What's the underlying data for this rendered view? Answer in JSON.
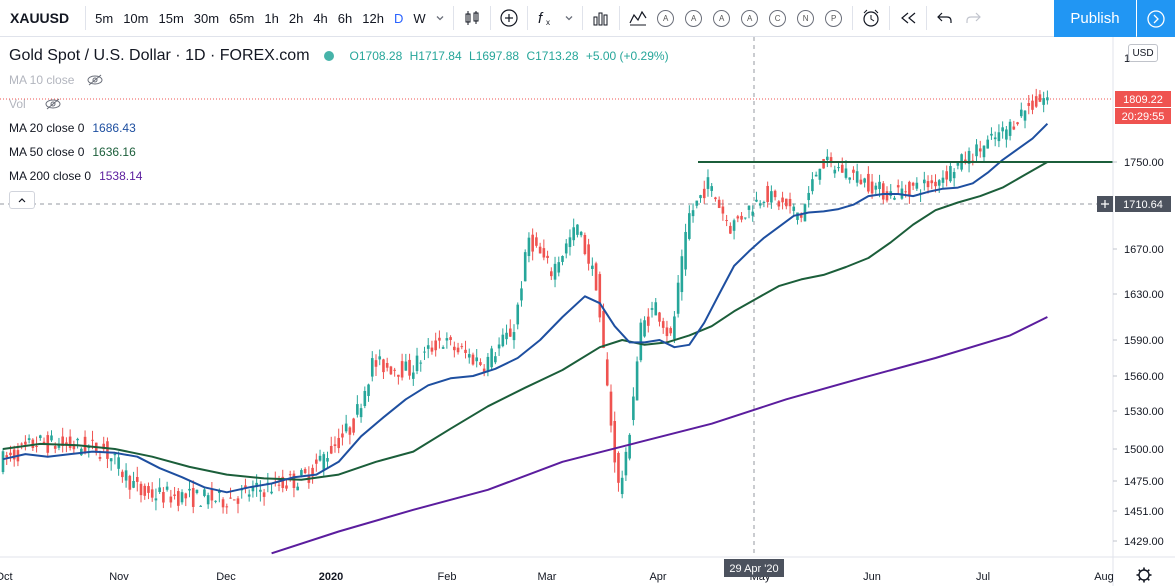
{
  "toolbar": {
    "symbol": "XAUUSD",
    "timeframes": [
      "5m",
      "10m",
      "15m",
      "30m",
      "65m",
      "1h",
      "2h",
      "4h",
      "6h",
      "12h",
      "D",
      "W"
    ],
    "active_timeframe": "D",
    "study_letters": [
      "A",
      "A",
      "A",
      "A",
      "C",
      "N",
      "P"
    ],
    "publish_label": "Publish"
  },
  "legend": {
    "title": "Gold Spot / U.S. Dollar · 1D · FOREX.com",
    "o_label": "O",
    "o": "1708.28",
    "h_label": "H",
    "h": "1717.84",
    "l_label": "L",
    "l": "1697.88",
    "c_label": "C",
    "c": "1713.28",
    "change": "+5.00 (+0.29%)",
    "ma10": "MA 10 close",
    "vol": "Vol",
    "ma20_name": "MA 20 close 0",
    "ma20_value": "1686.43",
    "ma50_name": "MA 50 close 0",
    "ma50_value": "1636.16",
    "ma200_name": "MA 200 close 0",
    "ma200_value": "1538.14"
  },
  "currency_label": "USD",
  "colors": {
    "up": "#26a69a",
    "down": "#ef5350",
    "ma20": "#1e4fa0",
    "ma50": "#1b5e3a",
    "ma200": "#5b1d9e",
    "accent": "#2196f3"
  },
  "chart_data": {
    "type": "candlestick",
    "x_ticks": [
      "Oct",
      "Nov",
      "Dec",
      "2020",
      "Feb",
      "Mar",
      "Apr",
      "May",
      "Jun",
      "Jul",
      "Aug"
    ],
    "y_ticks": [
      1429.0,
      1451.0,
      1475.0,
      1500.0,
      1530.0,
      1560.0,
      1590.0,
      1630.0,
      1670.0,
      1710.64,
      1750.0,
      1809.22
    ],
    "y_labels": [
      "1429.00",
      "1451.00",
      "1475.00",
      "1500.00",
      "1530.00",
      "1560.00",
      "1590.00",
      "1630.00",
      "1670.00",
      "1750.00"
    ],
    "y_top_partial": "1",
    "last_price": "1809.22",
    "countdown": "20:29:55",
    "crosshair_price": "1710.64",
    "crosshair_date": "29 Apr '20",
    "horizontal_line_price": 1750.0,
    "series": [
      {
        "name": "MA 20 close 0",
        "color": "#1e4fa0"
      },
      {
        "name": "MA 50 close 0",
        "color": "#1b5e3a"
      },
      {
        "name": "MA 200 close 0",
        "color": "#5b1d9e"
      }
    ],
    "ma20_path": [
      [
        0,
        1492
      ],
      [
        6,
        1496
      ],
      [
        12,
        1494
      ],
      [
        18,
        1496
      ],
      [
        24,
        1498
      ],
      [
        30,
        1497
      ],
      [
        36,
        1494
      ],
      [
        42,
        1485
      ],
      [
        48,
        1478
      ],
      [
        54,
        1470
      ],
      [
        60,
        1466
      ],
      [
        66,
        1470
      ],
      [
        72,
        1473
      ],
      [
        78,
        1478
      ],
      [
        84,
        1480
      ],
      [
        90,
        1490
      ],
      [
        96,
        1510
      ],
      [
        102,
        1525
      ],
      [
        108,
        1540
      ],
      [
        114,
        1552
      ],
      [
        120,
        1558
      ],
      [
        126,
        1560
      ],
      [
        132,
        1566
      ],
      [
        138,
        1575
      ],
      [
        144,
        1590
      ],
      [
        150,
        1610
      ],
      [
        156,
        1628
      ],
      [
        160,
        1622
      ],
      [
        164,
        1602
      ],
      [
        168,
        1588
      ],
      [
        172,
        1588
      ],
      [
        176,
        1590
      ],
      [
        180,
        1584
      ],
      [
        184,
        1586
      ],
      [
        188,
        1605
      ],
      [
        192,
        1630
      ],
      [
        196,
        1655
      ],
      [
        200,
        1668
      ],
      [
        204,
        1680
      ],
      [
        208,
        1690
      ],
      [
        212,
        1700
      ],
      [
        216,
        1703
      ],
      [
        220,
        1704
      ],
      [
        224,
        1706
      ],
      [
        228,
        1710
      ],
      [
        232,
        1718
      ],
      [
        236,
        1720
      ],
      [
        240,
        1720
      ],
      [
        244,
        1718
      ],
      [
        248,
        1722
      ],
      [
        252,
        1725
      ],
      [
        256,
        1726
      ],
      [
        260,
        1730
      ],
      [
        264,
        1740
      ],
      [
        268,
        1752
      ],
      [
        272,
        1762
      ],
      [
        276,
        1772
      ],
      [
        280,
        1786
      ]
    ],
    "ma50_path": [
      [
        0,
        1500
      ],
      [
        10,
        1504
      ],
      [
        20,
        1503
      ],
      [
        30,
        1500
      ],
      [
        40,
        1494
      ],
      [
        50,
        1486
      ],
      [
        60,
        1480
      ],
      [
        70,
        1477
      ],
      [
        80,
        1476
      ],
      [
        90,
        1480
      ],
      [
        100,
        1490
      ],
      [
        110,
        1498
      ],
      [
        120,
        1516
      ],
      [
        130,
        1534
      ],
      [
        140,
        1550
      ],
      [
        150,
        1565
      ],
      [
        160,
        1584
      ],
      [
        166,
        1590
      ],
      [
        172,
        1586
      ],
      [
        178,
        1588
      ],
      [
        184,
        1594
      ],
      [
        190,
        1602
      ],
      [
        196,
        1615
      ],
      [
        202,
        1626
      ],
      [
        208,
        1637
      ],
      [
        214,
        1643
      ],
      [
        220,
        1647
      ],
      [
        226,
        1654
      ],
      [
        232,
        1662
      ],
      [
        238,
        1676
      ],
      [
        244,
        1692
      ],
      [
        250,
        1705
      ],
      [
        256,
        1712
      ],
      [
        262,
        1718
      ],
      [
        268,
        1726
      ],
      [
        274,
        1738
      ],
      [
        280,
        1750
      ]
    ],
    "ma200_path": [
      [
        72,
        1420
      ],
      [
        90,
        1436
      ],
      [
        110,
        1452
      ],
      [
        130,
        1468
      ],
      [
        150,
        1490
      ],
      [
        170,
        1505
      ],
      [
        190,
        1520
      ],
      [
        210,
        1540
      ],
      [
        230,
        1558
      ],
      [
        250,
        1575
      ],
      [
        270,
        1594
      ],
      [
        280,
        1610
      ]
    ]
  }
}
